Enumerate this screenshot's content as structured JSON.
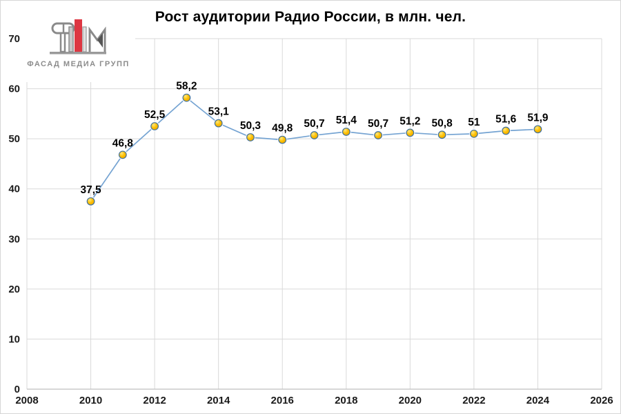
{
  "title": "Рост аудитории Радио России, в млн. чел.",
  "logo": {
    "text": "ФАСАД МЕДИА ГРУПП",
    "red": "#dd3742",
    "gray": "#8a8a8a",
    "light_gray": "#c8c8c8"
  },
  "chart_data": {
    "type": "line",
    "title": "Рост аудитории Радио России, в млн. чел.",
    "xlabel": "",
    "ylabel": "",
    "x": [
      2010,
      2011,
      2012,
      2013,
      2014,
      2015,
      2016,
      2017,
      2018,
      2019,
      2020,
      2021,
      2022,
      2023,
      2024
    ],
    "values": [
      37.5,
      46.8,
      52.5,
      58.2,
      53.1,
      50.3,
      49.8,
      50.7,
      51.4,
      50.7,
      51.2,
      50.8,
      51,
      51.6,
      51.9
    ],
    "labels": [
      "37,5",
      "46,8",
      "52,5",
      "58,2",
      "53,1",
      "50,3",
      "49,8",
      "50,7",
      "51,4",
      "50,7",
      "51,2",
      "50,8",
      "51",
      "51,6",
      "51,9"
    ],
    "xlim": [
      2008,
      2026
    ],
    "ylim": [
      0,
      70
    ],
    "x_ticks": [
      2008,
      2010,
      2012,
      2014,
      2016,
      2018,
      2020,
      2022,
      2024,
      2026
    ],
    "y_ticks": [
      0,
      10,
      20,
      30,
      40,
      50,
      60,
      70
    ],
    "grid": true,
    "legend": false,
    "grid_color": "#d9d9d9",
    "axis_color": "#bfbfbf",
    "line_color": "#74a3d2",
    "marker_fill": "#ffc000",
    "marker_fill_light": "#ffe680",
    "marker_fill_dark": "#e8a500",
    "marker_stroke": "#41719c"
  }
}
